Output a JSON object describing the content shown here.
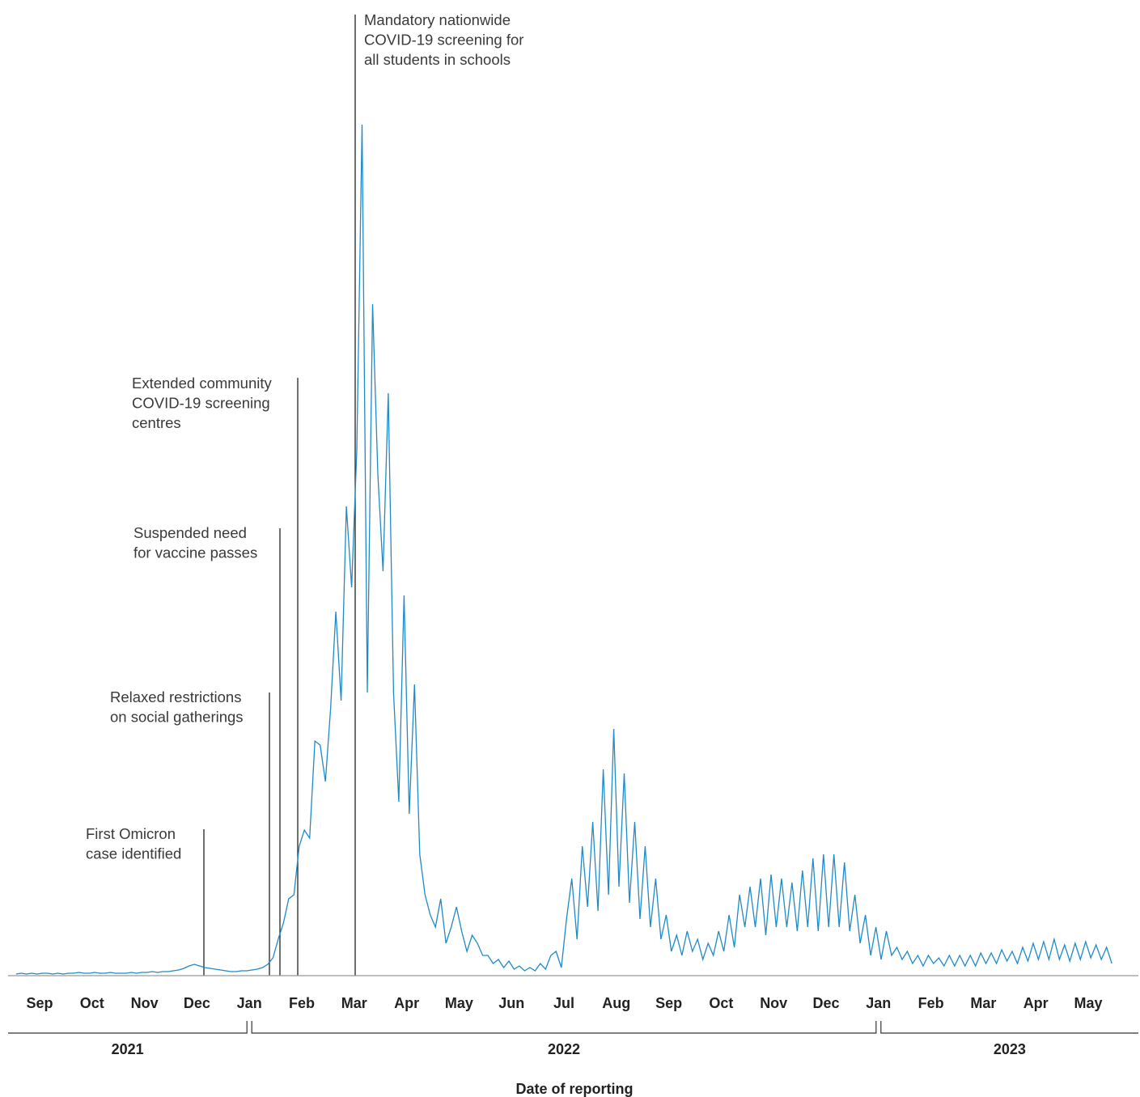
{
  "chart_data": {
    "type": "line",
    "x_label": "Date of reporting",
    "color": "#1f8ac8",
    "ylim": [
      0,
      1060
    ],
    "annotations": [
      {
        "lines": [
          "First Omicron",
          "case identified"
        ]
      },
      {
        "lines": [
          "Relaxed restrictions",
          "on social gatherings"
        ]
      },
      {
        "lines": [
          "Suspended need",
          "for vaccine passes"
        ]
      },
      {
        "lines": [
          "Extended community",
          "COVID-19 screening",
          "centres"
        ]
      },
      {
        "lines": [
          "Mandatory nationwide",
          "COVID-19 screening for",
          "all students in schools"
        ]
      }
    ],
    "years": [
      {
        "label": "2021",
        "months": [
          {
            "label": "Sep",
            "values": [
              2,
              3,
              2,
              3,
              2,
              3,
              3,
              2,
              3,
              2
            ]
          },
          {
            "label": "Oct",
            "values": [
              3,
              3,
              4,
              3,
              3,
              4,
              3,
              3,
              4,
              3
            ]
          },
          {
            "label": "Nov",
            "values": [
              3,
              3,
              4,
              3,
              4,
              4,
              5,
              4,
              5,
              5
            ]
          },
          {
            "label": "Dec",
            "values": [
              6,
              7,
              9,
              12,
              14,
              12,
              10,
              9,
              8,
              7
            ]
          }
        ]
      },
      {
        "label": "2022",
        "months": [
          {
            "label": "Jan",
            "values": [
              6,
              5,
              5,
              6,
              6,
              7,
              8,
              10,
              14,
              22
            ]
          },
          {
            "label": "Feb",
            "values": [
              45,
              65,
              95,
              100,
              160,
              180,
              170,
              290,
              285,
              240
            ]
          },
          {
            "label": "Mar",
            "values": [
              330,
              450,
              340,
              580,
              480,
              650,
              1052,
              350,
              830,
              620
            ]
          },
          {
            "label": "Apr",
            "values": [
              500,
              720,
              350,
              215,
              470,
              200,
              360,
              150,
              100,
              75
            ]
          },
          {
            "label": "May",
            "values": [
              60,
              95,
              40,
              60,
              85,
              55,
              30,
              50,
              40,
              25
            ]
          },
          {
            "label": "Jun",
            "values": [
              25,
              15,
              20,
              10,
              18,
              8,
              12,
              6,
              10,
              6
            ]
          },
          {
            "label": "Jul",
            "values": [
              15,
              8,
              25,
              30,
              10,
              70,
              120,
              45,
              160,
              85
            ]
          },
          {
            "label": "Aug",
            "values": [
              190,
              80,
              255,
              100,
              305,
              110,
              250,
              90,
              190,
              70
            ]
          },
          {
            "label": "Sep",
            "values": [
              160,
              60,
              120,
              45,
              75,
              30,
              50,
              25,
              55,
              30
            ]
          },
          {
            "label": "Oct",
            "values": [
              45,
              20,
              40,
              25,
              55,
              30,
              75,
              35,
              100,
              60
            ]
          },
          {
            "label": "Nov",
            "values": [
              110,
              60,
              120,
              50,
              125,
              60,
              120,
              60,
              115,
              55
            ]
          },
          {
            "label": "Dec",
            "values": [
              130,
              60,
              145,
              55,
              150,
              60,
              150,
              60,
              140,
              55
            ]
          }
        ]
      },
      {
        "label": "2023",
        "months": [
          {
            "label": "Jan",
            "values": [
              100,
              40,
              75,
              25,
              60,
              20,
              55,
              25,
              35,
              20
            ]
          },
          {
            "label": "Feb",
            "values": [
              30,
              15,
              25,
              12,
              25,
              15,
              22,
              12,
              25,
              12
            ]
          },
          {
            "label": "Mar",
            "values": [
              25,
              12,
              25,
              12,
              28,
              15,
              28,
              15,
              32,
              18
            ]
          },
          {
            "label": "Apr",
            "values": [
              30,
              15,
              35,
              18,
              40,
              20,
              42,
              20,
              45,
              20
            ]
          },
          {
            "label": "May",
            "values": [
              38,
              18,
              40,
              20,
              42,
              22,
              38,
              20,
              35,
              15
            ]
          }
        ]
      }
    ]
  }
}
